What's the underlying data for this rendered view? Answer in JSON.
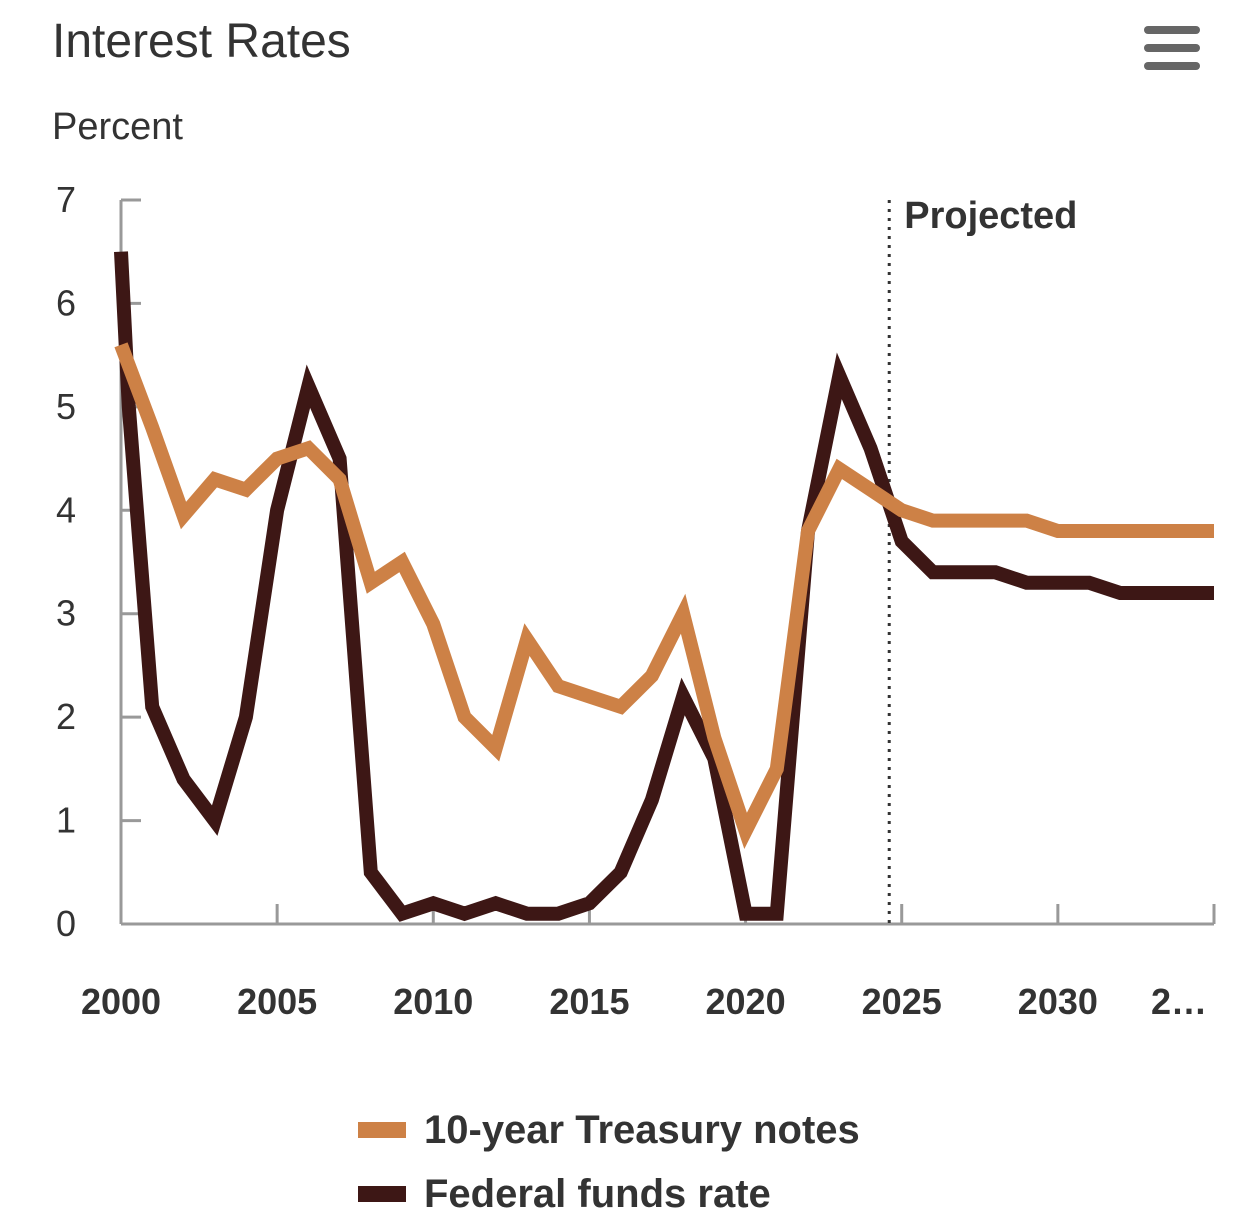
{
  "header": {
    "title": "Interest Rates",
    "menu_icon": "hamburger-menu-icon"
  },
  "chart_data": {
    "type": "line",
    "title": "Interest Rates",
    "ylabel": "Percent",
    "xlabel": "",
    "xlim": [
      2000,
      2035
    ],
    "ylim": [
      0,
      7
    ],
    "x_ticks": [
      "2000",
      "2005",
      "2010",
      "2015",
      "2020",
      "2025",
      "2030",
      "2…"
    ],
    "y_ticks": [
      "0",
      "1",
      "2",
      "3",
      "4",
      "5",
      "6",
      "7"
    ],
    "grid": false,
    "legend_position": "bottom",
    "annotations": [
      {
        "text": "Projected",
        "x": 2024.6,
        "type": "vertical-dotted-line"
      }
    ],
    "series": [
      {
        "name": "10-year Treasury notes",
        "color": "#cd8146",
        "x": [
          2000,
          2001,
          2002,
          2003,
          2004,
          2005,
          2006,
          2007,
          2008,
          2009,
          2010,
          2011,
          2012,
          2013,
          2014,
          2015,
          2016,
          2017,
          2018,
          2019,
          2020,
          2021,
          2022,
          2023,
          2024,
          2025,
          2026,
          2027,
          2028,
          2029,
          2030,
          2031,
          2032,
          2033,
          2034,
          2035
        ],
        "values": [
          5.6,
          4.8,
          3.95,
          4.3,
          4.2,
          4.5,
          4.6,
          4.3,
          3.3,
          3.5,
          2.9,
          2.0,
          1.7,
          2.75,
          2.3,
          2.2,
          2.1,
          2.4,
          3.0,
          1.8,
          0.9,
          1.5,
          3.8,
          4.4,
          4.2,
          4.0,
          3.9,
          3.9,
          3.9,
          3.9,
          3.8,
          3.8,
          3.8,
          3.8,
          3.8,
          3.8
        ]
      },
      {
        "name": "Federal funds rate",
        "color": "#3d1715",
        "x": [
          2000,
          2000.25,
          2001,
          2002,
          2003,
          2004,
          2005,
          2006,
          2007,
          2008,
          2009,
          2010,
          2011,
          2012,
          2013,
          2014,
          2015,
          2016,
          2017,
          2018,
          2019,
          2020,
          2021,
          2022,
          2023,
          2024,
          2025,
          2026,
          2027,
          2028,
          2029,
          2030,
          2031,
          2032,
          2033,
          2034,
          2035
        ],
        "values": [
          6.5,
          5.0,
          2.1,
          1.4,
          1.0,
          2.0,
          4.0,
          5.2,
          4.5,
          0.5,
          0.1,
          0.2,
          0.1,
          0.2,
          0.1,
          0.1,
          0.2,
          0.5,
          1.2,
          2.2,
          1.6,
          0.1,
          0.1,
          3.8,
          5.3,
          4.6,
          3.7,
          3.4,
          3.4,
          3.4,
          3.3,
          3.3,
          3.3,
          3.2,
          3.2,
          3.2,
          3.2
        ]
      }
    ]
  }
}
